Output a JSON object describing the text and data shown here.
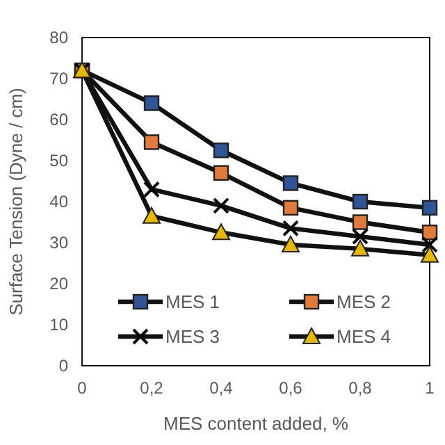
{
  "chart_data": {
    "type": "line",
    "xlabel": "MES content added, %",
    "ylabel": "Surface Tension (Dyne / cm)",
    "x": [
      0,
      0.2,
      0.4,
      0.6,
      0.8,
      1
    ],
    "series": [
      {
        "name": "MES 1",
        "color": "#2f5597",
        "marker": "square",
        "values": [
          72,
          64,
          52.5,
          44.5,
          40,
          38.5
        ]
      },
      {
        "name": "MES 2",
        "color": "#e07b39",
        "marker": "square",
        "values": [
          72,
          54.5,
          47,
          38.5,
          35,
          32.5
        ]
      },
      {
        "name": "MES 3",
        "color": "#000000",
        "marker": "cross",
        "values": [
          72,
          43,
          39,
          33.5,
          31.5,
          29.5
        ]
      },
      {
        "name": "MES 4",
        "color": "#e6b800",
        "marker": "triangle",
        "values": [
          72,
          36.5,
          32.5,
          29.5,
          28.5,
          27
        ]
      }
    ],
    "xlim": [
      0,
      1
    ],
    "xticks": [
      0,
      {
        "value": 0.2,
        "label": "0,2"
      },
      {
        "value": 0.4,
        "label": "0,4"
      },
      {
        "value": 0.6,
        "label": "0,6"
      },
      {
        "value": 0.8,
        "label": "0,8"
      },
      1
    ],
    "ylim": [
      0,
      80
    ],
    "yticks": [
      0,
      10,
      20,
      30,
      40,
      50,
      60,
      70,
      80
    ],
    "grid": false,
    "legend": "bottom",
    "line_style": "solid"
  }
}
